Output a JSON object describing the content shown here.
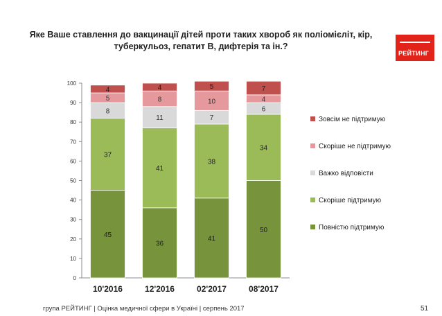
{
  "title": "Яке Ваше ставлення до вакцинації дітей проти таких хвороб як поліомієліт, кір, туберкульоз, гепатит В, дифтерія та ін.?",
  "logo": {
    "text": "РЕЙТИНГ",
    "color": "#e2231a"
  },
  "footer": "група РЕЙТИНГ  |  Оцінка медичної сфери в Україні  |  серпень 2017",
  "page_number": "51",
  "chart_data": {
    "type": "bar",
    "stacked": true,
    "categories": [
      "10'2016",
      "12'2016",
      "02'2017",
      "08'2017"
    ],
    "ylim": [
      0,
      100
    ],
    "yticks": [
      "0",
      "10",
      "20",
      "30",
      "40",
      "50",
      "60",
      "70",
      "80",
      "90",
      "100"
    ],
    "grid": false,
    "legend_position": "right",
    "series": [
      {
        "name": "Повністю підтримую",
        "values": [
          45,
          36,
          41,
          50
        ],
        "labels": [
          "45",
          "36",
          "41",
          "50"
        ],
        "color": "#77933c"
      },
      {
        "name": "Скоріше підтримую",
        "values": [
          37,
          41,
          38,
          34
        ],
        "labels": [
          "37",
          "41",
          "38",
          "34"
        ],
        "color": "#9bbb59"
      },
      {
        "name": "Важко відповісти",
        "values": [
          8,
          11,
          7,
          6
        ],
        "labels": [
          "8",
          "11",
          "7",
          "6"
        ],
        "color": "#d9d9d9"
      },
      {
        "name": "Скоріше не підтримую",
        "values": [
          5,
          8,
          10,
          4
        ],
        "labels": [
          "5",
          "8",
          "10",
          "4"
        ],
        "color": "#e6999d"
      },
      {
        "name": "Зовсім не підтримую",
        "values": [
          4,
          4,
          5,
          7
        ],
        "labels": [
          "4",
          "4",
          "5",
          "7"
        ],
        "color": "#c0504d"
      }
    ],
    "legend_order": [
      "Зовсім не підтримую",
      "Скоріше не підтримую",
      "Важко відповісти",
      "Скоріше підтримую",
      "Повністю підтримую"
    ]
  }
}
